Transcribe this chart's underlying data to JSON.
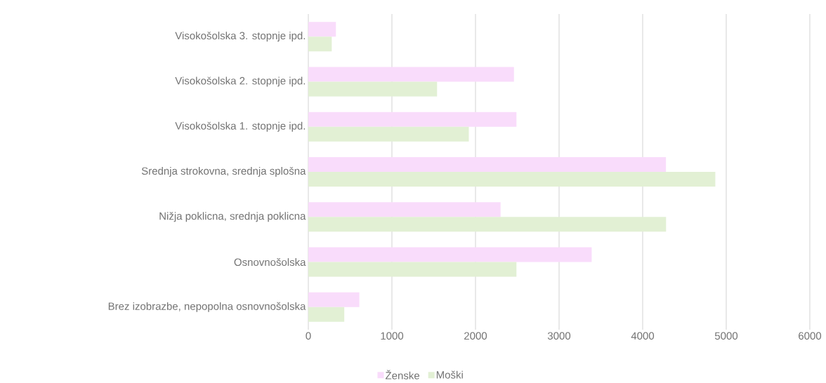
{
  "chart_data": {
    "type": "bar",
    "orientation": "horizontal",
    "categories": [
      "Visokošolska 3. stopnje ipd.",
      "Visokošolska 2. stopnje ipd.",
      "Visokošolska 1. stopnje ipd.",
      "Srednja strokovna, srednja splošna",
      "Nižja poklicna, srednja poklicna",
      "Osnovnošolska",
      "Brez izobrazbe, nepopolna osnovnošolska"
    ],
    "series": [
      {
        "name": "Ženske",
        "color": "#f9dcfb",
        "values": [
          330,
          2460,
          2490,
          4280,
          2300,
          3390,
          610
        ]
      },
      {
        "name": "Moški",
        "color": "#e2f0d4",
        "values": [
          280,
          1540,
          1920,
          4870,
          4280,
          2490,
          430
        ]
      }
    ],
    "xlim": [
      0,
      6000
    ],
    "xticks": [
      0,
      1000,
      2000,
      3000,
      4000,
      5000,
      6000
    ],
    "grid": "x",
    "legend": "bottom"
  }
}
